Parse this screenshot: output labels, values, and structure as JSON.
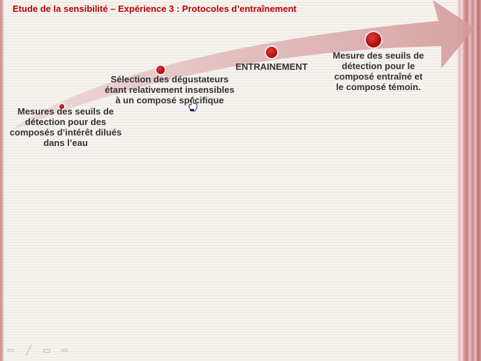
{
  "slide": {
    "title": "Etude de la sensibilité – Expérience 3 : Protocoles d’entraînement",
    "steps": [
      {
        "label_lines": [
          "Mesures des seuils de",
          "détection pour des",
          "composés d’intérêt dilués",
          "dans l’eau"
        ]
      },
      {
        "label_lines": [
          "Sélection des dégustateurs",
          "étant relativement insensibles",
          "à un composé spécifique"
        ]
      },
      {
        "label_lines": [
          "ENTRAINEMENT"
        ]
      },
      {
        "label_lines": [
          "Mesure des seuils de",
          "détection pour le",
          "composé entraîné et",
          "le composé témoin."
        ]
      }
    ]
  },
  "colors": {
    "title": "#c00000",
    "arrow": "#d7a3a3",
    "dot": "#b00a0a"
  },
  "nav": {
    "prev_icon": "arrow-left-icon",
    "pen_icon": "pen-icon",
    "menu_icon": "menu-icon",
    "next_icon": "arrow-right-icon"
  }
}
